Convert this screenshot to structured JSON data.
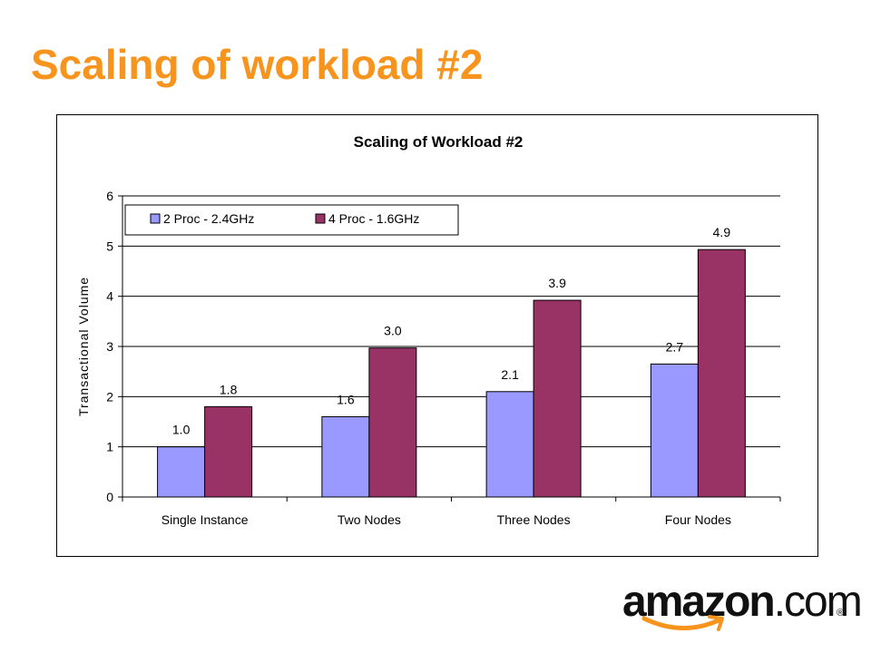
{
  "slide": {
    "title": "Scaling of workload #2"
  },
  "logo": {
    "word": "amazon",
    "suffix": ".com",
    "reg": "®",
    "icon": "amazon-smile-arrow-icon"
  },
  "colors": {
    "title": "#F7941D",
    "series1": "#9999FF",
    "series2": "#993366"
  },
  "chart_data": {
    "type": "bar",
    "title": "Scaling of Workload #2",
    "xlabel": "",
    "ylabel": "Transactional Volume",
    "categories": [
      "Single Instance",
      "Two Nodes",
      "Three Nodes",
      "Four Nodes"
    ],
    "series": [
      {
        "name": "2 Proc - 2.4GHz",
        "values": [
          1.0,
          1.6,
          2.1,
          2.65
        ],
        "labels": [
          "1.0",
          "1.6",
          "2.1",
          "2.7"
        ],
        "color": "#9999FF"
      },
      {
        "name": "4 Proc - 1.6GHz",
        "values": [
          1.8,
          2.97,
          3.92,
          4.93
        ],
        "labels": [
          "1.8",
          "3.0",
          "3.9",
          "4.9"
        ],
        "color": "#993366"
      }
    ],
    "ylim": [
      0,
      6
    ],
    "yticks": [
      "0",
      "1",
      "2",
      "3",
      "4",
      "5",
      "6"
    ],
    "grid": true,
    "legend": "top-left"
  }
}
